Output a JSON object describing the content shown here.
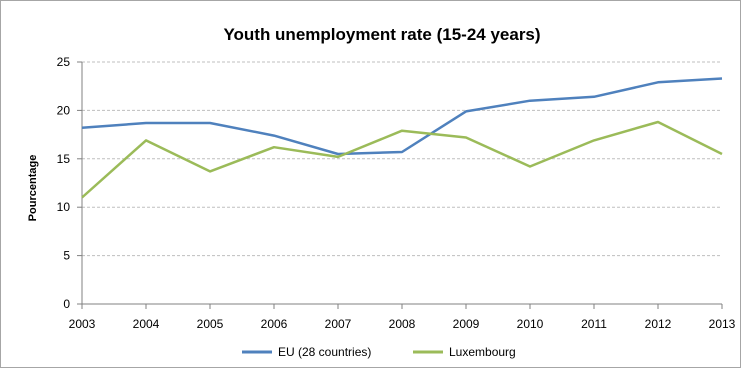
{
  "chart_data": {
    "type": "line",
    "title": "Youth unemployment rate (15-24 years)",
    "xlabel": "",
    "ylabel": "Pourcentage",
    "x": [
      "2003",
      "2004",
      "2005",
      "2006",
      "2007",
      "2008",
      "2009",
      "2010",
      "2011",
      "2012",
      "2013"
    ],
    "ylim": [
      0,
      25
    ],
    "yticks": [
      "0",
      "5",
      "10",
      "15",
      "20",
      "25"
    ],
    "grid": true,
    "legend_position": "bottom",
    "series": [
      {
        "name": "EU (28 countries)",
        "color": "#4f81bd",
        "values": [
          18.2,
          18.7,
          18.7,
          17.4,
          15.5,
          15.7,
          19.9,
          21.0,
          21.4,
          22.9,
          23.3
        ]
      },
      {
        "name": "Luxembourg",
        "color": "#9bbb59",
        "values": [
          11.0,
          16.9,
          13.7,
          16.2,
          15.2,
          17.9,
          17.2,
          14.2,
          16.9,
          18.8,
          15.5
        ]
      }
    ]
  }
}
